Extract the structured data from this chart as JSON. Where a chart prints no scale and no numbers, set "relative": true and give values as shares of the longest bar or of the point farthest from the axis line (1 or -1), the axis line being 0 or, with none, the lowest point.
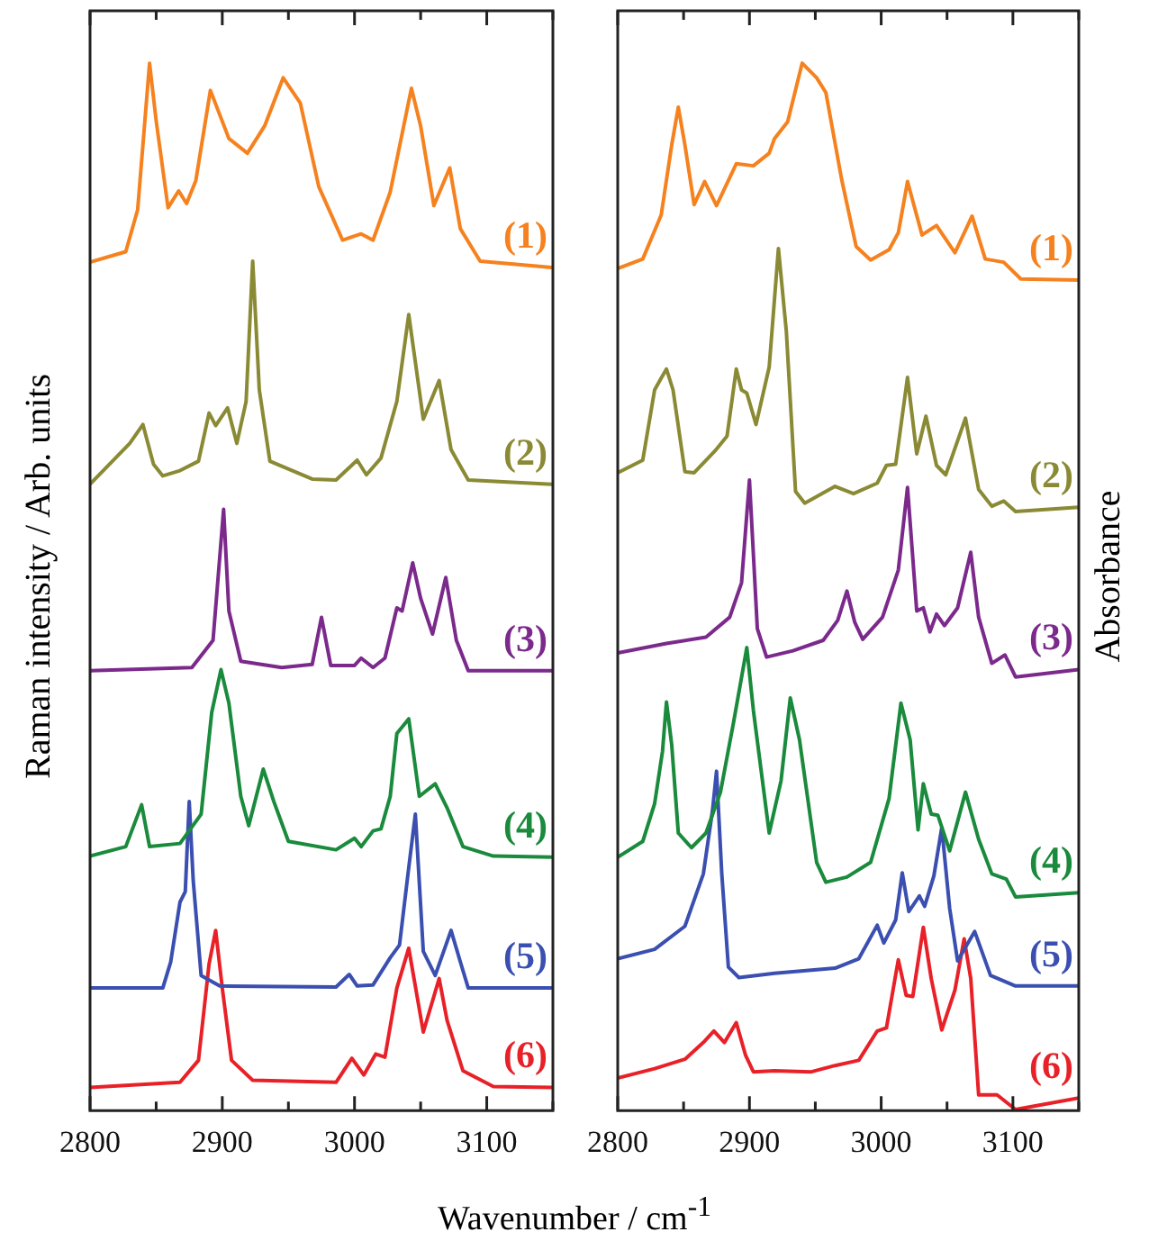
{
  "chart_data": [
    {
      "type": "line",
      "relative": true,
      "ylabel": "Raman intensity / Arb. units",
      "xlabel": "Wavenumber / cm$^{-1}$",
      "marker": "none",
      "line_style": "solid",
      "xlim": [
        2800,
        3150
      ],
      "xticks": [
        2800,
        {
          "value": 2850,
          "label": null
        },
        2900,
        {
          "value": 2950,
          "label": null
        },
        3000,
        {
          "value": 3050,
          "label": null
        },
        3100,
        {
          "value": 3150,
          "label": null
        }
      ],
      "series": [
        {
          "name": "(1)",
          "color": "#f5821f",
          "x": [
            2800,
            2827,
            2836,
            2845,
            2850,
            2859,
            2867,
            2873,
            2880,
            2891,
            2905,
            2919,
            2932,
            2946,
            2959,
            2973,
            2991,
            3005,
            3014,
            3027,
            3043,
            3050,
            3060,
            3072,
            3080,
            3095,
            3149
          ],
          "values": [
            0.81,
            0.82,
            0.86,
            1.0,
            0.945,
            0.862,
            0.878,
            0.866,
            0.888,
            0.974,
            0.928,
            0.914,
            0.94,
            0.986,
            0.962,
            0.882,
            0.831,
            0.837,
            0.831,
            0.877,
            0.976,
            0.94,
            0.864,
            0.9,
            0.842,
            0.811,
            0.805
          ]
        },
        {
          "name": "(2)",
          "color": "#8a8a35",
          "x": [
            2800,
            2830,
            2840,
            2848,
            2855,
            2868,
            2882,
            2890,
            2895,
            2904,
            2911,
            2918,
            2923,
            2928,
            2936,
            2968,
            2986,
            3002,
            3009,
            3020,
            3032,
            3041,
            3052,
            3064,
            3073,
            3086,
            3149
          ],
          "values": [
            0.598,
            0.637,
            0.655,
            0.617,
            0.606,
            0.611,
            0.62,
            0.666,
            0.654,
            0.671,
            0.637,
            0.677,
            0.811,
            0.688,
            0.62,
            0.603,
            0.602,
            0.621,
            0.607,
            0.623,
            0.677,
            0.76,
            0.66,
            0.697,
            0.631,
            0.602,
            0.598
          ]
        },
        {
          "name": "(3)",
          "color": "#7b2a8c",
          "x": [
            2800,
            2877,
            2893,
            2901,
            2905,
            2914,
            2945,
            2968,
            2975,
            2982,
            3000,
            3005,
            3014,
            3023,
            3032,
            3036,
            3044,
            3050,
            3059,
            3069,
            3077,
            3086,
            3149
          ],
          "values": [
            0.42,
            0.423,
            0.449,
            0.574,
            0.477,
            0.429,
            0.423,
            0.426,
            0.471,
            0.425,
            0.425,
            0.432,
            0.423,
            0.432,
            0.48,
            0.477,
            0.523,
            0.489,
            0.455,
            0.509,
            0.449,
            0.42,
            0.42
          ]
        },
        {
          "name": "(4)",
          "color": "#1a8a3c",
          "x": [
            2800,
            2827,
            2839,
            2845,
            2868,
            2884,
            2892,
            2899,
            2905,
            2914,
            2920,
            2931,
            2939,
            2950,
            2986,
            3000,
            3005,
            3014,
            3020,
            3027,
            3032,
            3041,
            3049,
            3061,
            3070,
            3082,
            3105,
            3149
          ],
          "values": [
            0.243,
            0.252,
            0.292,
            0.252,
            0.255,
            0.283,
            0.38,
            0.421,
            0.389,
            0.3,
            0.272,
            0.326,
            0.295,
            0.257,
            0.249,
            0.26,
            0.252,
            0.267,
            0.269,
            0.3,
            0.36,
            0.374,
            0.3,
            0.312,
            0.289,
            0.252,
            0.243,
            0.242
          ]
        },
        {
          "name": "(5)",
          "color": "#3a4fb0",
          "x": [
            2800,
            2855,
            2861,
            2868,
            2872,
            2875,
            2878,
            2884,
            2898,
            2986,
            2996,
            3002,
            3014,
            3027,
            3034,
            3041,
            3046,
            3052,
            3061,
            3073,
            3080,
            3086,
            3149
          ],
          "values": [
            0.117,
            0.117,
            0.142,
            0.199,
            0.209,
            0.295,
            0.22,
            0.129,
            0.119,
            0.118,
            0.13,
            0.119,
            0.12,
            0.146,
            0.158,
            0.232,
            0.283,
            0.152,
            0.129,
            0.172,
            0.142,
            0.117,
            0.117
          ]
        },
        {
          "name": "(6)",
          "color": "#e82128",
          "x": [
            2800,
            2868,
            2882,
            2890,
            2895,
            2900,
            2907,
            2923,
            2986,
            2998,
            3007,
            3016,
            3023,
            3032,
            3041,
            3052,
            3064,
            3070,
            3082,
            3105,
            3149
          ],
          "values": [
            0.022,
            0.027,
            0.048,
            0.14,
            0.172,
            0.117,
            0.048,
            0.029,
            0.027,
            0.05,
            0.034,
            0.054,
            0.051,
            0.117,
            0.155,
            0.075,
            0.126,
            0.086,
            0.038,
            0.023,
            0.022
          ]
        }
      ]
    },
    {
      "type": "line",
      "relative": true,
      "ylabel": "Absorbance",
      "marker": "none",
      "line_style": "solid",
      "xlim": [
        2800,
        3150
      ],
      "xticks": [
        2800,
        {
          "value": 2850,
          "label": null
        },
        2900,
        {
          "value": 2950,
          "label": null
        },
        3000,
        {
          "value": 3050,
          "label": null
        },
        3100,
        {
          "value": 3150,
          "label": null
        }
      ],
      "series": [
        {
          "name": "(1)",
          "color": "#f5821f",
          "x": [
            2800,
            2819,
            2833,
            2841,
            2846,
            2851,
            2858,
            2866,
            2875,
            2890,
            2903,
            2915,
            2919,
            2929,
            2940,
            2951,
            2958,
            2970,
            2981,
            2992,
            3006,
            3013,
            3020,
            3031,
            3042,
            3056,
            3069,
            3079,
            3093,
            3106,
            3150
          ],
          "values": [
            0.804,
            0.813,
            0.855,
            0.922,
            0.958,
            0.922,
            0.865,
            0.887,
            0.864,
            0.904,
            0.902,
            0.914,
            0.928,
            0.944,
            1.0,
            0.986,
            0.972,
            0.889,
            0.825,
            0.812,
            0.822,
            0.838,
            0.887,
            0.836,
            0.845,
            0.819,
            0.854,
            0.813,
            0.81,
            0.794,
            0.793
          ]
        },
        {
          "name": "(2)",
          "color": "#8a8a35",
          "x": [
            2800,
            2819,
            2828,
            2832,
            2837,
            2842,
            2851,
            2858,
            2874,
            2883,
            2890,
            2894,
            2898,
            2905,
            2915,
            2922,
            2928,
            2935,
            2942,
            2965,
            2979,
            2997,
            3004,
            3011,
            3020,
            3027,
            3034,
            3042,
            3049,
            3064,
            3074,
            3084,
            3093,
            3102,
            3150
          ],
          "values": [
            0.609,
            0.621,
            0.688,
            0.697,
            0.708,
            0.688,
            0.61,
            0.609,
            0.63,
            0.644,
            0.708,
            0.688,
            0.685,
            0.655,
            0.71,
            0.823,
            0.744,
            0.591,
            0.58,
            0.596,
            0.589,
            0.599,
            0.616,
            0.617,
            0.7,
            0.627,
            0.663,
            0.616,
            0.607,
            0.661,
            0.593,
            0.577,
            0.582,
            0.572,
            0.576
          ]
        },
        {
          "name": "(3)",
          "color": "#7b2a8c",
          "x": [
            2800,
            2837,
            2867,
            2885,
            2894,
            2900,
            2906,
            2913,
            2933,
            2956,
            2967,
            2974,
            2980,
            2986,
            3001,
            3013,
            3020,
            3027,
            3032,
            3037,
            3042,
            3048,
            3058,
            3068,
            3074,
            3084,
            3094,
            3102,
            3150
          ],
          "values": [
            0.437,
            0.446,
            0.452,
            0.471,
            0.504,
            0.602,
            0.46,
            0.433,
            0.439,
            0.449,
            0.468,
            0.496,
            0.466,
            0.45,
            0.471,
            0.516,
            0.595,
            0.477,
            0.48,
            0.457,
            0.474,
            0.463,
            0.48,
            0.533,
            0.471,
            0.427,
            0.435,
            0.414,
            0.421
          ]
        },
        {
          "name": "(4)",
          "color": "#1a8a3c",
          "x": [
            2800,
            2819,
            2828,
            2834,
            2837,
            2841,
            2846,
            2856,
            2867,
            2878,
            2888,
            2898,
            2903,
            2915,
            2924,
            2931,
            2938,
            2951,
            2958,
            2974,
            2992,
            3006,
            3015,
            3022,
            3028,
            3032,
            3038,
            3043,
            3052,
            3064,
            3074,
            3084,
            3095,
            3102,
            3150
          ],
          "values": [
            0.242,
            0.257,
            0.293,
            0.343,
            0.39,
            0.349,
            0.265,
            0.251,
            0.265,
            0.304,
            0.371,
            0.442,
            0.382,
            0.265,
            0.315,
            0.394,
            0.354,
            0.237,
            0.218,
            0.223,
            0.237,
            0.298,
            0.389,
            0.354,
            0.268,
            0.312,
            0.283,
            0.282,
            0.248,
            0.304,
            0.259,
            0.226,
            0.221,
            0.204,
            0.208
          ]
        },
        {
          "name": "(5)",
          "color": "#3a4fb0",
          "x": [
            2800,
            2828,
            2851,
            2865,
            2872,
            2875,
            2879,
            2884,
            2892,
            2919,
            2965,
            2983,
            2997,
            3002,
            3011,
            3016,
            3021,
            3029,
            3033,
            3040,
            3046,
            3052,
            3058,
            3071,
            3083,
            3102,
            3150
          ],
          "values": [
            0.145,
            0.154,
            0.176,
            0.226,
            0.287,
            0.324,
            0.226,
            0.137,
            0.127,
            0.131,
            0.136,
            0.145,
            0.177,
            0.16,
            0.182,
            0.227,
            0.19,
            0.205,
            0.195,
            0.224,
            0.27,
            0.193,
            0.143,
            0.171,
            0.129,
            0.119,
            0.119
          ]
        },
        {
          "name": "(6)",
          "color": "#e82128",
          "x": [
            2800,
            2828,
            2851,
            2865,
            2873,
            2881,
            2890,
            2897,
            2903,
            2919,
            2947,
            2965,
            2983,
            2997,
            3004,
            3013,
            3019,
            3024,
            3032,
            3038,
            3046,
            3056,
            3063,
            3068,
            3074,
            3088,
            3102,
            3150
          ],
          "values": [
            0.031,
            0.04,
            0.049,
            0.065,
            0.076,
            0.065,
            0.084,
            0.053,
            0.037,
            0.038,
            0.037,
            0.043,
            0.048,
            0.076,
            0.079,
            0.144,
            0.11,
            0.109,
            0.175,
            0.126,
            0.077,
            0.115,
            0.164,
            0.126,
            0.015,
            0.015,
            0.001,
            0.012
          ]
        }
      ]
    }
  ]
}
